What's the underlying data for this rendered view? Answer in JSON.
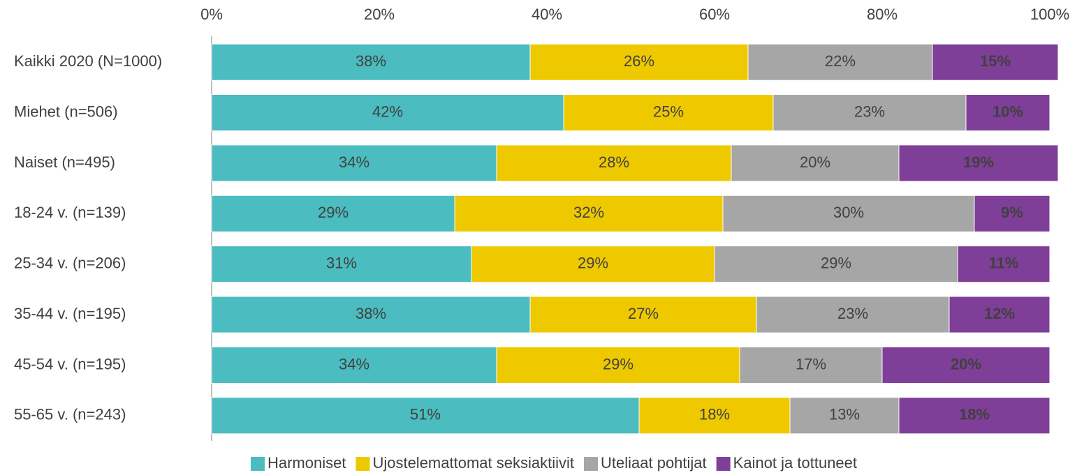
{
  "chart_data": {
    "type": "bar",
    "orientation": "horizontal",
    "stacked": true,
    "categories": [
      "Kaikki 2020 (N=1000)",
      "Miehet (n=506)",
      "Naiset (n=495)",
      "18-24 v. (n=139)",
      "25-34 v. (n=206)",
      "35-44 v. (n=195)",
      "45-54 v. (n=195)",
      "55-65 v. (n=243)"
    ],
    "series": [
      {
        "name": "Harmoniset",
        "color": "#4bbcbf",
        "values": [
          38,
          42,
          34,
          29,
          31,
          38,
          34,
          51
        ],
        "value_labels": [
          "38%",
          "42%",
          "34%",
          "29%",
          "31%",
          "38%",
          "34%",
          "51%"
        ]
      },
      {
        "name": "Ujostelemattomat seksiaktiivit",
        "color": "#efc900",
        "values": [
          26,
          25,
          28,
          32,
          29,
          27,
          29,
          18
        ],
        "value_labels": [
          "26%",
          "25%",
          "28%",
          "32%",
          "29%",
          "27%",
          "29%",
          "18%"
        ]
      },
      {
        "name": "Uteliaat pohtijat",
        "color": "#a6a6a6",
        "values": [
          22,
          23,
          20,
          30,
          29,
          23,
          17,
          13
        ],
        "value_labels": [
          "22%",
          "23%",
          "20%",
          "30%",
          "29%",
          "23%",
          "17%",
          "13%"
        ]
      },
      {
        "name": "Kainot ja tottuneet",
        "color": "#7f3f98",
        "values": [
          15,
          10,
          19,
          9,
          11,
          12,
          20,
          18
        ],
        "value_labels": [
          "15%",
          "10%",
          "19%",
          "9%",
          "11%",
          "12%",
          "20%",
          "18%"
        ]
      }
    ],
    "xlim": [
      0,
      100
    ],
    "xticks": [
      {
        "value": 0,
        "label": "0%"
      },
      {
        "value": 20,
        "label": "20%"
      },
      {
        "value": 40,
        "label": "40%"
      },
      {
        "value": 60,
        "label": "60%"
      },
      {
        "value": 80,
        "label": "80%"
      },
      {
        "value": 100,
        "label": "100%"
      }
    ],
    "legend": "bottom"
  }
}
